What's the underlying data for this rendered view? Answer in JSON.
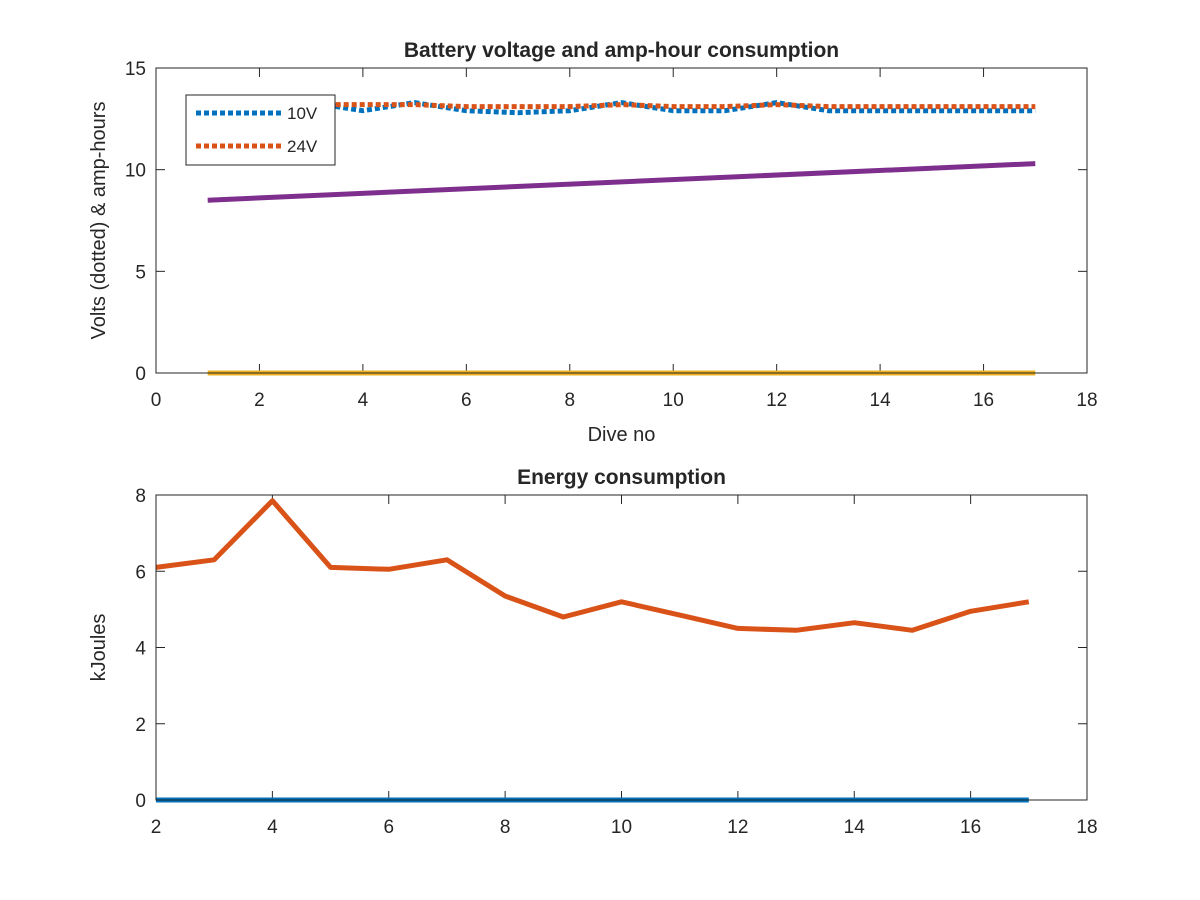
{
  "chart_data": [
    {
      "type": "line",
      "title": "Battery voltage and amp-hour consumption",
      "xlabel": "Dive no",
      "ylabel": "Volts (dotted) & amp-hours",
      "xlim": [
        0,
        18
      ],
      "ylim": [
        0,
        15
      ],
      "xticks": [
        0,
        2,
        4,
        6,
        8,
        10,
        12,
        14,
        16,
        18
      ],
      "yticks": [
        0,
        5,
        10,
        15
      ],
      "grid": false,
      "legend_position": "top-left",
      "series": [
        {
          "name": "10V",
          "style": "dotted",
          "color": "#0072BD",
          "x": [
            1,
            2,
            3,
            4,
            5,
            6,
            7,
            8,
            9,
            10,
            11,
            12,
            13,
            14,
            15,
            16,
            17
          ],
          "y": [
            13.3,
            13.2,
            13.3,
            12.9,
            13.3,
            12.9,
            12.8,
            12.9,
            13.3,
            12.9,
            12.9,
            13.3,
            12.9,
            12.9,
            12.9,
            12.9,
            12.9
          ]
        },
        {
          "name": "24V",
          "style": "dotted",
          "color": "#D95319",
          "x": [
            1,
            2,
            3,
            4,
            5,
            6,
            7,
            8,
            9,
            10,
            11,
            12,
            13,
            14,
            15,
            16,
            17
          ],
          "y": [
            13.2,
            13.2,
            13.2,
            13.2,
            13.2,
            13.1,
            13.1,
            13.1,
            13.2,
            13.1,
            13.1,
            13.2,
            13.1,
            13.1,
            13.1,
            13.1,
            13.1
          ]
        },
        {
          "style": "solid",
          "color": "#EDB120",
          "x": [
            1,
            17
          ],
          "y": [
            0,
            0
          ]
        },
        {
          "style": "solid",
          "color": "#7E2F8E",
          "x": [
            1,
            17
          ],
          "y": [
            8.5,
            10.3
          ]
        }
      ]
    },
    {
      "type": "line",
      "title": "Energy consumption",
      "xlabel": "",
      "ylabel": "kJoules",
      "xlim": [
        2,
        18
      ],
      "ylim": [
        0,
        8
      ],
      "xticks": [
        2,
        4,
        6,
        8,
        10,
        12,
        14,
        16,
        18
      ],
      "yticks": [
        0,
        2,
        4,
        6,
        8
      ],
      "grid": false,
      "series": [
        {
          "style": "solid",
          "color": "#0072BD",
          "x": [
            2,
            17
          ],
          "y": [
            0,
            0
          ]
        },
        {
          "style": "solid",
          "color": "#D95319",
          "x": [
            2,
            3,
            4,
            5,
            6,
            7,
            8,
            9,
            10,
            11,
            12,
            13,
            14,
            15,
            16,
            17
          ],
          "y": [
            6.1,
            6.3,
            7.85,
            6.1,
            6.05,
            6.3,
            5.35,
            4.8,
            5.2,
            4.85,
            4.5,
            4.45,
            4.65,
            4.45,
            4.95,
            5.2
          ]
        }
      ]
    }
  ]
}
